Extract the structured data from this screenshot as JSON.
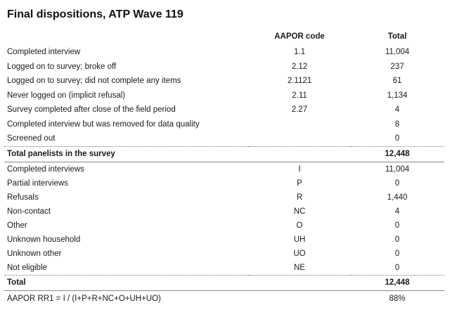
{
  "title": "Final dispositions, ATP Wave 119",
  "headers": {
    "label": "",
    "code": "AAPOR code",
    "total": "Total"
  },
  "section1": [
    {
      "label": "Completed interview",
      "code": "1.1",
      "total": "11,004"
    },
    {
      "label": "Logged on to survey; broke off",
      "code": "2.12",
      "total": "237"
    },
    {
      "label": "Logged on to survey; did not complete any items",
      "code": "2.1121",
      "total": "61"
    },
    {
      "label": "Never logged on (implicit refusal)",
      "code": "2.11",
      "total": "1,134"
    },
    {
      "label": "Survey completed after close of the field period",
      "code": "2.27",
      "total": "4"
    },
    {
      "label": "Completed interview but was removed for data quality",
      "code": "",
      "total": "8"
    },
    {
      "label": "Screened out",
      "code": "",
      "total": "0"
    }
  ],
  "subtotal": {
    "label": "Total panelists in the survey",
    "code": "",
    "total": "12,448"
  },
  "section2": [
    {
      "label": "Completed interviews",
      "code": "I",
      "total": "11,004"
    },
    {
      "label": "Partial interviews",
      "code": "P",
      "total": "0"
    },
    {
      "label": "Refusals",
      "code": "R",
      "total": "1,440"
    },
    {
      "label": "Non-contact",
      "code": "NC",
      "total": "4"
    },
    {
      "label": "Other",
      "code": "O",
      "total": "0"
    },
    {
      "label": "Unknown household",
      "code": "UH",
      "total": "0"
    },
    {
      "label": "Unknown other",
      "code": "UO",
      "total": "0"
    },
    {
      "label": "Not eligible",
      "code": "NE",
      "total": "0"
    }
  ],
  "total": {
    "label": "Total",
    "code": "",
    "total": "12,448"
  },
  "response_rate": {
    "label": "AAPOR RR1 = I / (I+P+R+NC+O+UH+UO)",
    "code": "",
    "total": "88%"
  }
}
